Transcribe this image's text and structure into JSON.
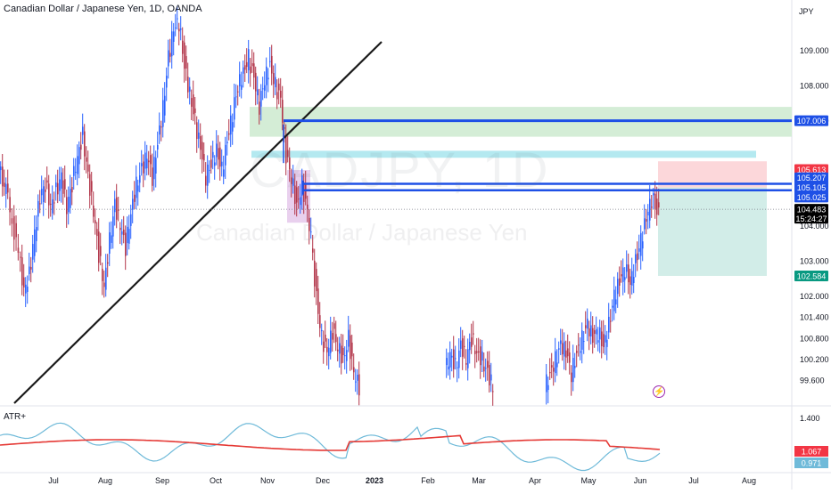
{
  "header": {
    "title": "Canadian Dollar / Japanese Yen, 1D, OANDA",
    "currency": "JPY",
    "watermark_symbol": "CADJPY, 1D",
    "watermark_name": "Canadian Dollar / Japanese Yen"
  },
  "indicator": {
    "title": "ATR+"
  },
  "chart_data": {
    "type": "candlestick",
    "symbol": "CADJPY",
    "timeframe": "1D",
    "source": "OANDA",
    "y_ticks": [
      109.0,
      108.0,
      107.0,
      104.0,
      103.0,
      102.0,
      101.4,
      100.8,
      100.2,
      99.6
    ],
    "ylim": [
      99.4,
      110.0
    ],
    "x_ticks": [
      "Jul",
      "Aug",
      "Sep",
      "Oct",
      "Nov",
      "Dec",
      "2023",
      "Feb",
      "Mar",
      "Apr",
      "May",
      "Jun",
      "Jul",
      "Aug"
    ],
    "price_labels": [
      {
        "value": "107.006",
        "color": "#1e50e6"
      },
      {
        "value": "105.613",
        "color": "#f23645"
      },
      {
        "value": "105.207",
        "color": "#1e50e6"
      },
      {
        "value": "105.105",
        "color": "#1e50e6"
      },
      {
        "value": "105.025",
        "color": "#1e50e6"
      },
      {
        "value": "104.483",
        "color": "#000000"
      },
      {
        "value": "102.584",
        "color": "#089981"
      }
    ],
    "countdown": "15:24:27",
    "last_price": 104.483,
    "horizontal_lines": [
      107.006,
      105.207,
      105.025
    ],
    "zones": [
      {
        "name": "supply-zone-green",
        "from": 106.5,
        "to": 107.4,
        "color": "#d4edd6"
      },
      {
        "name": "supply-zone-cyan",
        "from": 105.95,
        "to": 106.15,
        "color": "#b4e9f0"
      }
    ],
    "position": {
      "entry": 105.105,
      "stop": 105.613,
      "target": 102.584
    },
    "trendline": {
      "from": [
        "Jun",
        99.4
      ],
      "to": [
        "Nov",
        109.2
      ]
    },
    "atr": {
      "y_ticks": [
        1.4
      ],
      "labels": [
        {
          "value": "1.067",
          "color": "#f23645"
        },
        {
          "value": "0.971",
          "color": "#6fbad9"
        }
      ],
      "ylim": [
        0.9,
        1.5
      ]
    }
  }
}
